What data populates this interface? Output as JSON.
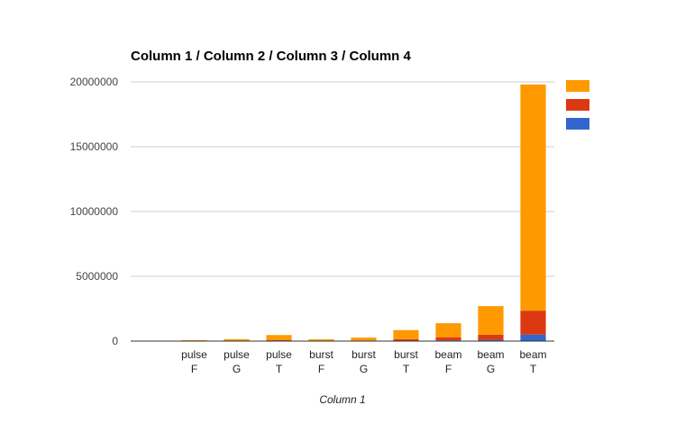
{
  "chart_data": {
    "type": "bar",
    "stacked": true,
    "title": "Column 1 / Column 2 / Column 3 / Column 4",
    "xlabel": "Column 1",
    "ylabel": "",
    "ylim": [
      0,
      20000000
    ],
    "yticks": [
      "0",
      "5000000",
      "10000000",
      "15000000",
      "20000000"
    ],
    "ytick_values": [
      0,
      5000000,
      10000000,
      15000000,
      20000000
    ],
    "categories": [
      [
        "",
        ""
      ],
      [
        "pulse",
        "F"
      ],
      [
        "pulse",
        "G"
      ],
      [
        "pulse",
        "T"
      ],
      [
        "burst",
        "F"
      ],
      [
        "burst",
        "G"
      ],
      [
        "burst",
        "T"
      ],
      [
        "beam",
        "F"
      ],
      [
        "beam",
        "G"
      ],
      [
        "beam",
        "T"
      ]
    ],
    "series": [
      {
        "color": "#3366cc",
        "values": [
          0,
          2000,
          4000,
          8000,
          4000,
          8000,
          30000,
          60000,
          100000,
          500000
        ]
      },
      {
        "color": "#dc3912",
        "values": [
          0,
          8000,
          15000,
          60000,
          15000,
          40000,
          120000,
          240000,
          400000,
          1850000
        ]
      },
      {
        "color": "#ff9900",
        "values": [
          0,
          60000,
          130000,
          400000,
          120000,
          220000,
          700000,
          1080000,
          2200000,
          17450000
        ]
      }
    ],
    "legend": {
      "placement": "right",
      "entries": [
        "#ff9900",
        "#dc3912",
        "#3366cc"
      ]
    },
    "grid": true
  }
}
